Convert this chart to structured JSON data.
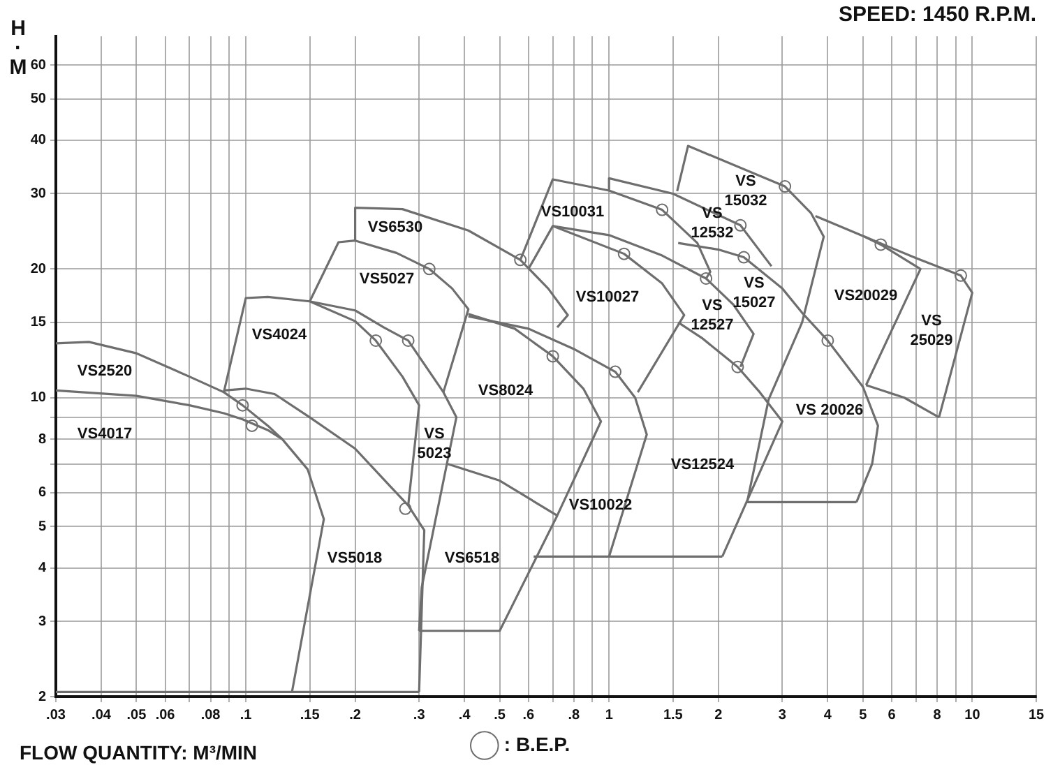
{
  "chart_data": {
    "type": "line",
    "title": "SPEED: 1450 R.P.M.",
    "xlabel": "FLOW QUANTITY: M³/MIN",
    "ylabel": "H·M",
    "log": "xy",
    "grid": true,
    "legend": "bottom",
    "marker": "none",
    "xlim": [
      0.03,
      15
    ],
    "ylim": [
      2,
      70
    ],
    "xticks": [
      {
        "value": 0.03,
        "label": ".03"
      },
      {
        "value": 0.04,
        "label": ".04"
      },
      {
        "value": 0.05,
        "label": ".05"
      },
      {
        "value": 0.06,
        "label": ".06"
      },
      {
        "value": 0.07,
        "label": null
      },
      {
        "value": 0.08,
        "label": ".08"
      },
      {
        "value": 0.09,
        "label": null
      },
      {
        "value": 0.1,
        "label": ".1"
      },
      {
        "value": 0.15,
        "label": ".15"
      },
      {
        "value": 0.2,
        "label": ".2"
      },
      {
        "value": 0.3,
        "label": ".3"
      },
      {
        "value": 0.4,
        "label": ".4"
      },
      {
        "value": 0.5,
        "label": ".5"
      },
      {
        "value": 0.6,
        "label": ".6"
      },
      {
        "value": 0.7,
        "label": null
      },
      {
        "value": 0.8,
        "label": ".8"
      },
      {
        "value": 0.9,
        "label": null
      },
      1,
      1.5,
      2,
      3,
      4,
      5,
      6,
      {
        "value": 7,
        "label": null
      },
      8,
      {
        "value": 9,
        "label": null
      },
      10,
      15
    ],
    "yticks": [
      2,
      3,
      4,
      5,
      6,
      {
        "value": 7,
        "label": null
      },
      8,
      {
        "value": 9,
        "label": null
      },
      10,
      15,
      20,
      30,
      40,
      50,
      60
    ],
    "series": [
      {
        "color": "#6e6e6e",
        "x": [
          0.03,
          0.3
        ],
        "values": [
          2.05,
          2.05
        ]
      },
      {
        "color": "#6e6e6e",
        "x": [
          0.03,
          0.037,
          0.05,
          0.07,
          0.087,
          0.098,
          0.115,
          0.126
        ],
        "values": [
          13.4,
          13.5,
          12.7,
          11.2,
          10.3,
          9.6,
          8.6,
          8.0
        ]
      },
      {
        "color": "#6e6e6e",
        "x": [
          0.03,
          0.05,
          0.07,
          0.087,
          0.098,
          0.115,
          0.126,
          0.148,
          0.164,
          0.134
        ],
        "values": [
          10.4,
          10.1,
          9.6,
          9.2,
          8.9,
          8.4,
          8.0,
          6.8,
          5.2,
          2.05
        ]
      },
      {
        "color": "#6e6e6e",
        "x": [
          0.087,
          0.1,
          0.115,
          0.15,
          0.2,
          0.228,
          0.27,
          0.3,
          0.28
        ],
        "values": [
          10.3,
          17.1,
          17.2,
          16.8,
          15.1,
          13.6,
          11.2,
          9.6,
          5.6
        ]
      },
      {
        "color": "#6e6e6e",
        "x": [
          0.087,
          0.1,
          0.12,
          0.15,
          0.2,
          0.25,
          0.28,
          0.31,
          0.3
        ],
        "values": [
          10.4,
          10.5,
          10.2,
          9.0,
          7.6,
          6.2,
          5.6,
          4.9,
          2.05
        ]
      },
      {
        "color": "#6e6e6e",
        "x": [
          0.15,
          0.2,
          0.24,
          0.28,
          0.35,
          0.38,
          0.305,
          0.3
        ],
        "values": [
          16.8,
          16.0,
          14.6,
          13.6,
          10.3,
          9.0,
          3.6,
          2.85
        ]
      },
      {
        "color": "#6e6e6e",
        "x": [
          0.15,
          0.18,
          0.2,
          0.26,
          0.32,
          0.37,
          0.41,
          0.35
        ],
        "values": [
          16.8,
          23.1,
          23.3,
          21.8,
          20.0,
          18.0,
          16.1,
          10.3
        ]
      },
      {
        "color": "#6e6e6e",
        "x": [
          0.2,
          0.2,
          0.27,
          0.41,
          0.57,
          0.68,
          0.77,
          0.72
        ],
        "values": [
          23.3,
          27.8,
          27.6,
          24.6,
          21.0,
          18.0,
          15.6,
          14.6
        ]
      },
      {
        "color": "#6e6e6e",
        "x": [
          0.41,
          0.55,
          0.7,
          0.85,
          0.95,
          0.72,
          0.5,
          0.3
        ],
        "values": [
          15.7,
          14.5,
          12.5,
          10.5,
          8.8,
          5.3,
          2.85,
          2.85
        ]
      },
      {
        "color": "#6e6e6e",
        "x": [
          0.36,
          0.5,
          0.72
        ],
        "values": [
          7.0,
          6.4,
          5.3
        ]
      },
      {
        "color": "#6e6e6e",
        "x": [
          0.41,
          0.6,
          0.8,
          1.04,
          1.18,
          1.27,
          1.0
        ],
        "values": [
          15.5,
          14.5,
          13.0,
          11.5,
          10.0,
          8.2,
          4.25
        ]
      },
      {
        "color": "#6e6e6e",
        "x": [
          0.62,
          2.05
        ],
        "values": [
          4.25,
          4.25
        ]
      },
      {
        "color": "#6e6e6e",
        "x": [
          0.57,
          0.7,
          1.0,
          1.4,
          1.75,
          1.9,
          1.85
        ],
        "values": [
          21.0,
          32.4,
          30.5,
          27.5,
          23.0,
          19.7,
          19.0
        ]
      },
      {
        "color": "#6e6e6e",
        "x": [
          0.6,
          0.7,
          1.1,
          1.4,
          1.61,
          1.2
        ],
        "values": [
          20.0,
          25.2,
          21.7,
          18.5,
          15.6,
          10.3
        ]
      },
      {
        "color": "#6e6e6e",
        "x": [
          0.7,
          1.0,
          1.4,
          1.85,
          2.2,
          2.5,
          2.3
        ],
        "values": [
          25.2,
          24.0,
          21.5,
          19.0,
          16.5,
          14.1,
          11.8
        ]
      },
      {
        "color": "#6e6e6e",
        "x": [
          1.55,
          1.8,
          2.26,
          2.6,
          3.0,
          2.05
        ],
        "values": [
          15.0,
          13.8,
          11.8,
          10.3,
          8.8,
          4.25
        ]
      },
      {
        "color": "#6e6e6e",
        "x": [
          1.0,
          1.0,
          1.5,
          2.3,
          2.8
        ],
        "values": [
          30.4,
          32.6,
          30.0,
          25.3,
          20.3
        ]
      },
      {
        "color": "#6e6e6e",
        "x": [
          1.55,
          2.0,
          2.35,
          3.0,
          3.4,
          4.0,
          5.0,
          5.5,
          5.3,
          4.8
        ],
        "values": [
          23.0,
          22.2,
          21.3,
          18.0,
          15.8,
          13.6,
          10.6,
          8.6,
          7.0,
          5.7
        ]
      },
      {
        "color": "#6e6e6e",
        "x": [
          1.54,
          1.65,
          3.05,
          3.6,
          3.9,
          3.4,
          2.75,
          2.4,
          4.8
        ],
        "values": [
          30.4,
          38.8,
          31.2,
          27.0,
          23.8,
          15.0,
          9.9,
          5.7,
          5.7
        ]
      },
      {
        "color": "#6e6e6e",
        "x": [
          3.7,
          5.05,
          5.6,
          7.2,
          5.1
        ],
        "values": [
          26.6,
          23.8,
          22.8,
          20.0,
          10.7
        ]
      },
      {
        "color": "#6e6e6e",
        "x": [
          5.05,
          7.0,
          9.3,
          10.0,
          8.1
        ],
        "values": [
          23.8,
          21.2,
          19.3,
          17.6,
          9.0
        ]
      },
      {
        "color": "#6e6e6e",
        "x": [
          5.1,
          6.5,
          8.1
        ],
        "values": [
          10.7,
          10.0,
          9.0
        ]
      },
      {
        "type": "scatter",
        "name": ": B.E.P.",
        "marker": "circle",
        "color": "#6e6e6e",
        "x": [
          0.098,
          0.104,
          0.228,
          0.28,
          0.275,
          0.32,
          0.57,
          0.7,
          1.04,
          1.1,
          1.4,
          1.85,
          2.26,
          2.3,
          2.35,
          3.05,
          4.0,
          5.6,
          9.3
        ],
        "values": [
          9.6,
          8.6,
          13.6,
          13.6,
          5.5,
          20.0,
          21.0,
          12.5,
          11.5,
          21.7,
          27.5,
          19.0,
          11.8,
          25.3,
          21.3,
          31.2,
          13.6,
          22.8,
          19.3
        ]
      }
    ],
    "annotations": [
      "VS2520",
      "VS4017",
      "VS4024",
      "VS5018",
      "VS\n5023",
      "VS6518",
      "VS8024",
      "VS10022",
      "VS5027",
      "VS6530",
      "VS10031",
      "VS10027",
      "VS\n12532",
      "VS\n12527",
      "VS12524",
      "VS\n15032",
      "VS\n15027",
      "VS 20026",
      "VS20029",
      "VS\n25029"
    ]
  }
}
